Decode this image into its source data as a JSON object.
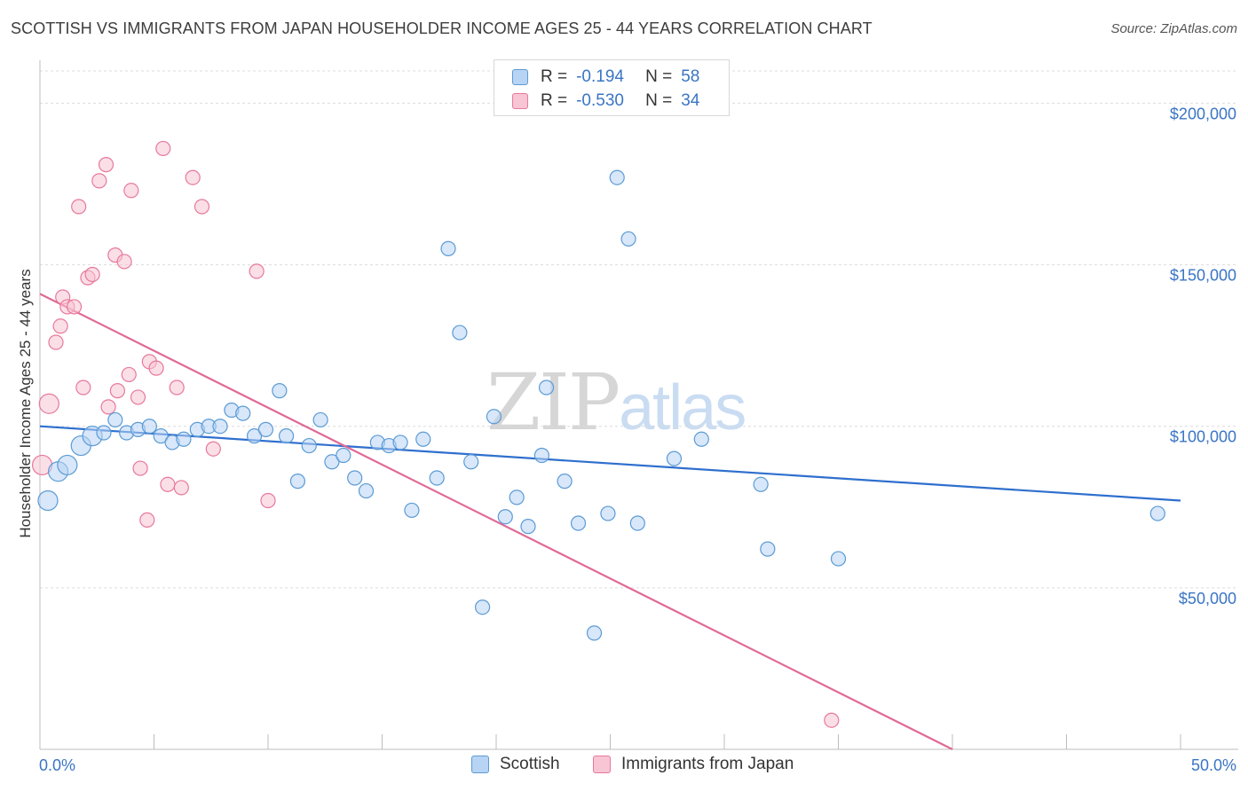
{
  "title": "SCOTTISH VS IMMIGRANTS FROM JAPAN HOUSEHOLDER INCOME AGES 25 - 44 YEARS CORRELATION CHART",
  "source": "Source: ZipAtlas.com",
  "watermark": {
    "zip": "ZIP",
    "atlas": "atlas"
  },
  "colors": {
    "scottish": "#5b9bd5",
    "scottish_fill": "#b8d4f4",
    "japan": "#e8789c",
    "japan_fill": "#f7c5d4",
    "blue_line": "#2f6fce",
    "pink_line": "#e06a96",
    "tick_text": "#3a75c4"
  },
  "legend": {
    "rows": [
      {
        "r_label": "R =",
        "r_value": "-0.194",
        "n_label": "N =",
        "n_value": "58"
      },
      {
        "r_label": "R =",
        "r_value": "-0.530",
        "n_label": "N =",
        "n_value": "34"
      }
    ]
  },
  "bottom_legend": {
    "scottish": "Scottish",
    "japan": "Immigrants from Japan"
  },
  "chart_data": {
    "type": "scatter",
    "title": "SCOTTISH VS IMMIGRANTS FROM JAPAN HOUSEHOLDER INCOME AGES 25 - 44 YEARS CORRELATION CHART",
    "xlabel": "",
    "ylabel": "Householder Income Ages 25 - 44 years",
    "xlim": [
      0,
      50
    ],
    "ylim": [
      0,
      210000
    ],
    "x_tick_labels": [
      "0.0%",
      "50.0%"
    ],
    "y_ticks": [
      50000,
      100000,
      150000,
      200000
    ],
    "y_tick_labels": [
      "$50,000",
      "$100,000",
      "$150,000",
      "$200,000"
    ],
    "grid": true,
    "series": [
      {
        "name": "Scottish",
        "R": -0.194,
        "N": 58,
        "trend": {
          "x0": 0,
          "y0": 100000,
          "x1": 50,
          "y1": 77000
        },
        "points": [
          {
            "x": 0.35,
            "y": 77000,
            "big": true
          },
          {
            "x": 0.8,
            "y": 86000,
            "big": true
          },
          {
            "x": 1.2,
            "y": 88000,
            "big": true
          },
          {
            "x": 1.8,
            "y": 94000,
            "big": true
          },
          {
            "x": 2.3,
            "y": 97000,
            "big": true
          },
          {
            "x": 2.8,
            "y": 98000
          },
          {
            "x": 3.3,
            "y": 102000
          },
          {
            "x": 3.8,
            "y": 98000
          },
          {
            "x": 4.3,
            "y": 99000
          },
          {
            "x": 4.8,
            "y": 100000
          },
          {
            "x": 5.3,
            "y": 97000
          },
          {
            "x": 5.8,
            "y": 95000
          },
          {
            "x": 6.3,
            "y": 96000
          },
          {
            "x": 6.9,
            "y": 99000
          },
          {
            "x": 7.4,
            "y": 100000
          },
          {
            "x": 7.9,
            "y": 100000
          },
          {
            "x": 8.4,
            "y": 105000
          },
          {
            "x": 8.9,
            "y": 104000
          },
          {
            "x": 9.4,
            "y": 97000
          },
          {
            "x": 9.9,
            "y": 99000
          },
          {
            "x": 10.5,
            "y": 111000
          },
          {
            "x": 10.8,
            "y": 97000
          },
          {
            "x": 11.3,
            "y": 83000
          },
          {
            "x": 11.8,
            "y": 94000
          },
          {
            "x": 12.3,
            "y": 102000
          },
          {
            "x": 12.8,
            "y": 89000
          },
          {
            "x": 13.3,
            "y": 91000
          },
          {
            "x": 13.8,
            "y": 84000
          },
          {
            "x": 14.3,
            "y": 80000
          },
          {
            "x": 14.8,
            "y": 95000
          },
          {
            "x": 15.3,
            "y": 94000
          },
          {
            "x": 15.8,
            "y": 95000
          },
          {
            "x": 16.3,
            "y": 74000
          },
          {
            "x": 16.8,
            "y": 96000
          },
          {
            "x": 17.4,
            "y": 84000
          },
          {
            "x": 17.9,
            "y": 155000
          },
          {
            "x": 18.4,
            "y": 129000
          },
          {
            "x": 18.9,
            "y": 89000
          },
          {
            "x": 19.4,
            "y": 44000
          },
          {
            "x": 19.9,
            "y": 103000
          },
          {
            "x": 20.4,
            "y": 72000
          },
          {
            "x": 20.9,
            "y": 78000
          },
          {
            "x": 21.4,
            "y": 69000
          },
          {
            "x": 22.0,
            "y": 91000
          },
          {
            "x": 22.2,
            "y": 112000
          },
          {
            "x": 23.0,
            "y": 83000
          },
          {
            "x": 23.6,
            "y": 70000
          },
          {
            "x": 24.3,
            "y": 36000
          },
          {
            "x": 24.9,
            "y": 73000
          },
          {
            "x": 25.3,
            "y": 177000
          },
          {
            "x": 25.8,
            "y": 158000
          },
          {
            "x": 26.2,
            "y": 70000
          },
          {
            "x": 27.8,
            "y": 90000
          },
          {
            "x": 29.0,
            "y": 96000
          },
          {
            "x": 31.6,
            "y": 82000
          },
          {
            "x": 31.9,
            "y": 62000
          },
          {
            "x": 35.0,
            "y": 59000
          },
          {
            "x": 49.0,
            "y": 73000
          }
        ]
      },
      {
        "name": "Immigrants from Japan",
        "R": -0.53,
        "N": 34,
        "trend": {
          "x0": 0,
          "y0": 141000,
          "x1": 40,
          "y1": 0
        },
        "points": [
          {
            "x": 0.1,
            "y": 88000,
            "big": true
          },
          {
            "x": 0.4,
            "y": 107000,
            "big": true
          },
          {
            "x": 0.7,
            "y": 126000
          },
          {
            "x": 0.9,
            "y": 131000
          },
          {
            "x": 1.0,
            "y": 140000
          },
          {
            "x": 1.2,
            "y": 137000
          },
          {
            "x": 1.5,
            "y": 137000
          },
          {
            "x": 1.7,
            "y": 168000
          },
          {
            "x": 1.9,
            "y": 112000
          },
          {
            "x": 2.1,
            "y": 146000
          },
          {
            "x": 2.3,
            "y": 147000
          },
          {
            "x": 2.6,
            "y": 176000
          },
          {
            "x": 2.9,
            "y": 181000
          },
          {
            "x": 3.0,
            "y": 106000
          },
          {
            "x": 3.3,
            "y": 153000
          },
          {
            "x": 3.4,
            "y": 111000
          },
          {
            "x": 3.7,
            "y": 151000
          },
          {
            "x": 3.9,
            "y": 116000
          },
          {
            "x": 4.0,
            "y": 173000
          },
          {
            "x": 4.3,
            "y": 109000
          },
          {
            "x": 4.4,
            "y": 87000
          },
          {
            "x": 4.7,
            "y": 71000
          },
          {
            "x": 4.8,
            "y": 120000
          },
          {
            "x": 5.1,
            "y": 118000
          },
          {
            "x": 5.4,
            "y": 186000
          },
          {
            "x": 5.6,
            "y": 82000
          },
          {
            "x": 6.0,
            "y": 112000
          },
          {
            "x": 6.2,
            "y": 81000
          },
          {
            "x": 6.7,
            "y": 177000
          },
          {
            "x": 7.1,
            "y": 168000
          },
          {
            "x": 7.6,
            "y": 93000
          },
          {
            "x": 9.5,
            "y": 148000
          },
          {
            "x": 10.0,
            "y": 77000
          },
          {
            "x": 34.7,
            "y": 9000
          }
        ]
      }
    ]
  }
}
